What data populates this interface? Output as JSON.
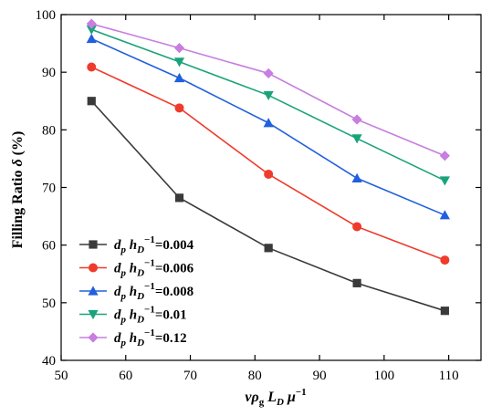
{
  "chart_data": {
    "type": "line",
    "title": "",
    "xlabel": {
      "v": "v",
      "rho": "ρ",
      "rho_sub": "g",
      "L": "L",
      "L_sub": "D",
      "mu": "μ",
      "exp": "−1"
    },
    "ylabel": {
      "prefix": "Filling Ratio ",
      "symbol": "δ",
      "suffix": " (%)"
    },
    "xlim": [
      50,
      115
    ],
    "ylim": [
      40,
      100
    ],
    "xticks": [
      50,
      60,
      70,
      80,
      90,
      100,
      110
    ],
    "yticks": [
      40,
      50,
      60,
      70,
      80,
      90,
      100
    ],
    "x": [
      54.7,
      68.3,
      82.1,
      95.8,
      109.4
    ],
    "grid": false,
    "legend_position": "lower-left",
    "series": [
      {
        "name": "=0.004",
        "color": "#3a3a3a",
        "marker": "square",
        "values": [
          85.0,
          68.2,
          59.5,
          53.4,
          48.6
        ]
      },
      {
        "name": "=0.006",
        "color": "#ef3b2c",
        "marker": "circle",
        "values": [
          90.9,
          83.8,
          72.3,
          63.2,
          57.4
        ]
      },
      {
        "name": "=0.008",
        "color": "#2060dd",
        "marker": "triangle-up",
        "values": [
          95.8,
          89.0,
          81.2,
          71.6,
          65.2
        ]
      },
      {
        "name": "=0.01",
        "color": "#1aa37a",
        "marker": "triangle-down",
        "values": [
          97.4,
          91.8,
          86.0,
          78.5,
          71.2
        ]
      },
      {
        "name": "=0.12",
        "color": "#c77ee0",
        "marker": "diamond",
        "values": [
          98.4,
          94.2,
          89.8,
          81.8,
          75.5
        ]
      }
    ],
    "legend_label": {
      "d": "d",
      "d_sub": "p",
      "h": "h",
      "h_sub": "D",
      "h_exp": "−1"
    }
  }
}
